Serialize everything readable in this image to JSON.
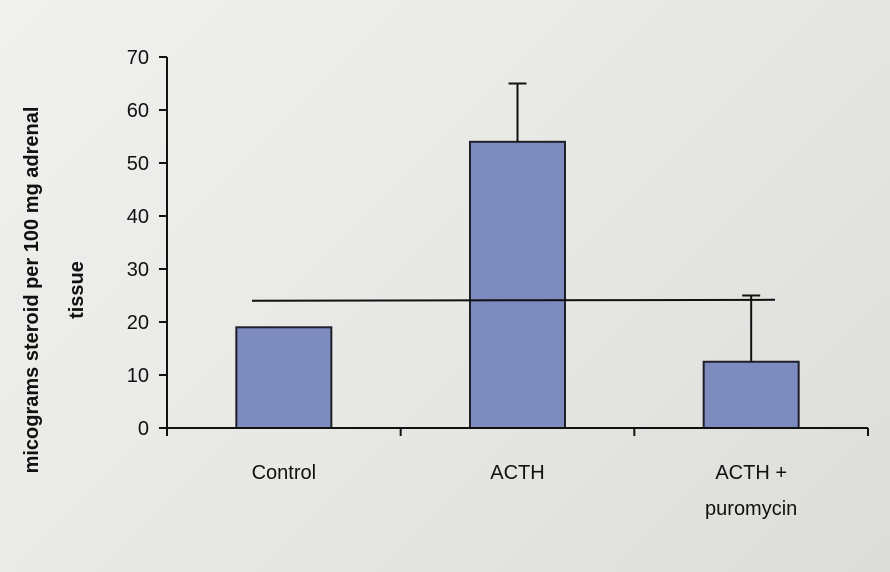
{
  "chart_data": {
    "type": "bar",
    "title": "",
    "xlabel": "",
    "ylabel_lines": [
      "micograms steroid per 100 mg adrenal",
      "tissue"
    ],
    "ylim": [
      0,
      70
    ],
    "yticks": [
      0,
      10,
      20,
      30,
      40,
      50,
      60,
      70
    ],
    "categories": [
      [
        "Control"
      ],
      [
        "ACTH"
      ],
      [
        "ACTH +",
        "puromycin"
      ]
    ],
    "values": [
      19,
      54,
      12.5
    ],
    "error_upper": [
      null,
      65,
      25
    ],
    "reference_line": 24,
    "bar_color": "#7d8bbf",
    "bar_edge_color": "#1f1f2a",
    "grid": false,
    "legend": "none"
  }
}
